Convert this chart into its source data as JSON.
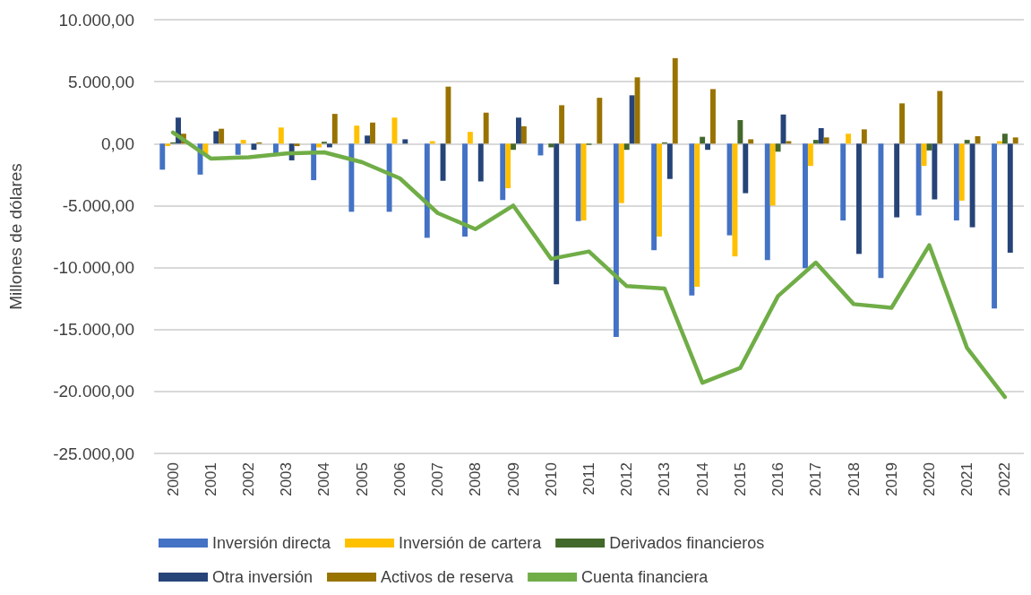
{
  "chart_data": {
    "type": "bar",
    "ylabel": "Millones de dólares",
    "categories": [
      "2000",
      "2001",
      "2002",
      "2003",
      "2004",
      "2005",
      "2006",
      "2007",
      "2008",
      "2009",
      "2010",
      "2011",
      "2012",
      "2013",
      "2014",
      "2015",
      "2016",
      "2017",
      "2018",
      "2019",
      "2020",
      "2021",
      "2022"
    ],
    "ylim": [
      -25000,
      10000
    ],
    "yticks": [
      {
        "value": -25000,
        "label": "-25.000,00"
      },
      {
        "value": -20000,
        "label": "-20.000,00"
      },
      {
        "value": -15000,
        "label": "-15.000,00"
      },
      {
        "value": -10000,
        "label": "-10.000,00"
      },
      {
        "value": -5000,
        "label": "-5.000,00"
      },
      {
        "value": 0,
        "label": "0,00"
      },
      {
        "value": 5000,
        "label": "5.000,00"
      },
      {
        "value": 10000,
        "label": "10.000,00"
      }
    ],
    "grid": "y",
    "legend": "bottom",
    "series": [
      {
        "name": "Inversión directa",
        "color": "#4472c4",
        "values": [
          -2100,
          -2500,
          -900,
          -850,
          -2950,
          -5500,
          -5500,
          -7600,
          -7500,
          -4550,
          -950,
          -6250,
          -15600,
          -8600,
          -12250,
          -7400,
          -9400,
          -10050,
          -6200,
          -10850,
          -5800,
          -6200,
          -13300
        ]
      },
      {
        "name": "Inversión de cartera",
        "color": "#ffc000",
        "values": [
          -200,
          -900,
          300,
          1300,
          -300,
          1450,
          2100,
          200,
          950,
          -3600,
          null,
          -6200,
          -4800,
          -7500,
          -11550,
          -9100,
          -5000,
          -1800,
          800,
          0,
          -1800,
          -4600,
          200
        ]
      },
      {
        "name": "Derivados financieros",
        "color": "#43682b",
        "values": [
          100,
          null,
          null,
          null,
          150,
          0,
          0,
          0,
          0,
          -500,
          -300,
          -100,
          -500,
          100,
          550,
          1900,
          -650,
          300,
          0,
          null,
          -550,
          300,
          800
        ]
      },
      {
        "name": "Otra inversión",
        "color": "#264478",
        "values": [
          2100,
          1000,
          -500,
          -1350,
          -300,
          650,
          350,
          -3000,
          -3050,
          2100,
          -11350,
          0,
          3900,
          -2850,
          -500,
          -4000,
          2350,
          1250,
          -8900,
          -5950,
          -4500,
          -6750,
          -8800
        ]
      },
      {
        "name": "Activos de reserva",
        "color": "#997300",
        "values": [
          800,
          1200,
          100,
          -200,
          2400,
          1700,
          0,
          4600,
          2500,
          1400,
          3100,
          3700,
          5350,
          6900,
          4400,
          350,
          200,
          500,
          1150,
          3250,
          4250,
          600,
          500
        ]
      },
      {
        "name": "Cuenta financiera",
        "type": "line",
        "color": "#70ad47",
        "marker": "none",
        "line_style": "solid",
        "values": [
          900,
          -1200,
          -1100,
          -800,
          -700,
          -1500,
          -2800,
          -5600,
          -6900,
          -5000,
          -9300,
          -8700,
          -11500,
          -11700,
          -19300,
          -18100,
          -12300,
          -9600,
          -12950,
          -13250,
          -8200,
          -16500,
          -20450
        ]
      }
    ]
  }
}
